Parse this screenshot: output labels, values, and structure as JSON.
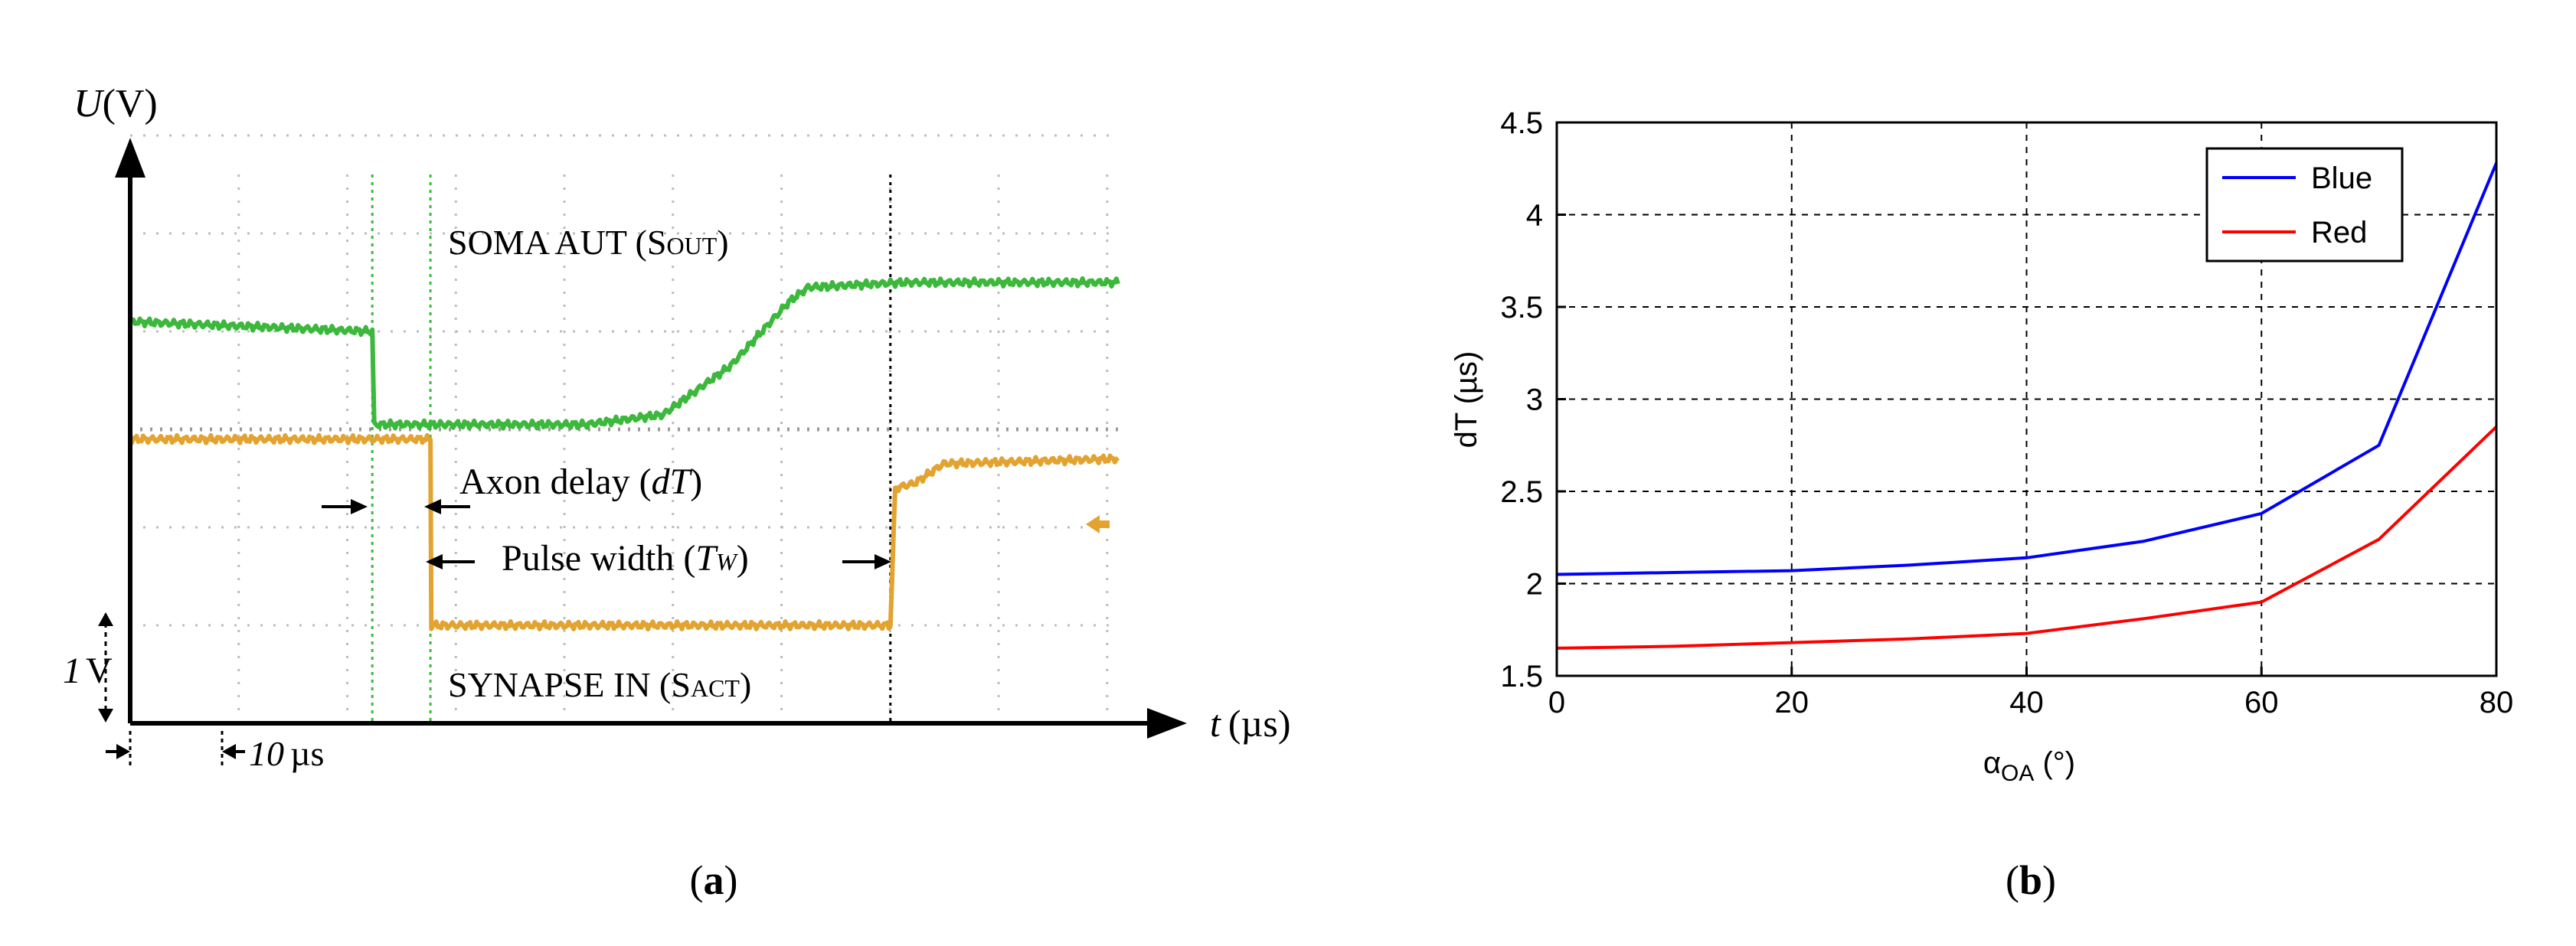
{
  "figure": {
    "panel_a_caption_prefix": "(",
    "panel_a_caption_letter": "a",
    "panel_a_caption_suffix": ")",
    "panel_b_caption_prefix": "(",
    "panel_b_caption_letter": "b",
    "panel_b_caption_suffix": ")"
  },
  "chart_data": [
    {
      "type": "line",
      "panel": "a",
      "y_axis_label_var": "U",
      "y_axis_label_unit": "(V)",
      "x_axis_label_var": "t",
      "x_axis_label_unit": "(µs)",
      "scale_voltage_value": "1",
      "scale_voltage_unit": "V",
      "scale_time_value": "10",
      "scale_time_unit": "µs",
      "grid": true,
      "series": [
        {
          "label_main": "SOMA AUT (S",
          "label_sub": "OUT",
          "label_end": ")",
          "color": "#3cb83c",
          "x": [
            0,
            25,
            25.2,
            47,
            55,
            62,
            68,
            70,
            80,
            102
          ],
          "y": [
            4.1,
            4.0,
            3.05,
            3.05,
            3.15,
            3.65,
            4.3,
            4.45,
            4.5,
            4.5
          ]
        },
        {
          "label_main": "SYNAPSE IN (S",
          "label_sub": "ACT",
          "label_end": ")",
          "color": "#e3a331",
          "x": [
            0,
            31,
            31.1,
            78.5,
            79,
            81,
            84,
            102
          ],
          "y": [
            2.9,
            2.9,
            1.0,
            1.0,
            2.4,
            2.45,
            2.65,
            2.7
          ]
        }
      ],
      "annotations": {
        "axon_delay_text": "Axon delay (",
        "axon_delay_var": "dT",
        "axon_delay_end": ")",
        "pulse_width_text": "Pulse width (",
        "pulse_width_var": "T",
        "pulse_width_sub": "W",
        "pulse_width_end": ")"
      },
      "markers_x": [
        25,
        31,
        78.5
      ]
    },
    {
      "type": "line",
      "panel": "b",
      "xlabel_main": "α",
      "xlabel_sub": "OA",
      "xlabel_unit": " (°)",
      "ylabel": "dT (µs)",
      "xlim": [
        0,
        80
      ],
      "ylim": [
        1.5,
        4.5
      ],
      "xticks": [
        "0",
        "20",
        "40",
        "60",
        "80"
      ],
      "yticks": [
        "1.5",
        "2",
        "2.5",
        "3",
        "3.5",
        "4",
        "4.5"
      ],
      "grid": true,
      "legend_position": "top-right",
      "x": [
        0,
        10,
        20,
        30,
        40,
        50,
        60,
        70,
        80
      ],
      "series": [
        {
          "name": "Blue",
          "color": "#0000ff",
          "values": [
            2.05,
            2.06,
            2.07,
            2.1,
            2.14,
            2.23,
            2.38,
            2.75,
            4.28
          ]
        },
        {
          "name": "Red",
          "color": "#ff0000",
          "values": [
            1.65,
            1.66,
            1.68,
            1.7,
            1.73,
            1.81,
            1.9,
            2.24,
            2.85
          ]
        }
      ]
    }
  ]
}
